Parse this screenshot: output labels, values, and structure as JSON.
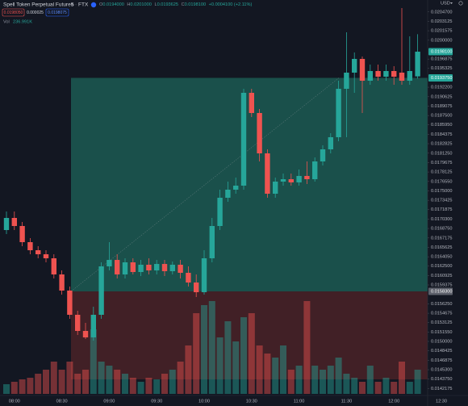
{
  "header": {
    "symbol": "Spell Token Perpetual Futures",
    "interval": "5",
    "exchange": "FTX",
    "ohlc": [
      {
        "key": "O",
        "value": "0.0194000"
      },
      {
        "key": "H",
        "value": "0.0201000"
      },
      {
        "key": "L",
        "value": "0.0193625"
      },
      {
        "key": "C",
        "value": "0.0198100"
      }
    ],
    "change": "+0.0004100 (+2.11%)",
    "sell_price": "0.0198050",
    "spread": "0.000025",
    "buy_price": "0.0198075",
    "volume_title": "Vol",
    "volume_value": "236.991K",
    "currency": "USD"
  },
  "chart_data": {
    "type": "candlestick",
    "categories": [
      null,
      "08:00",
      null,
      null,
      null,
      null,
      null,
      "08:30",
      null,
      null,
      null,
      null,
      null,
      "09:00",
      null,
      null,
      null,
      null,
      null,
      "09:30",
      null,
      null,
      null,
      null,
      null,
      "10:00",
      null,
      null,
      null,
      null,
      null,
      "10:30",
      null,
      null,
      null,
      null,
      null,
      "11:00",
      null,
      null,
      null,
      null,
      null,
      "11:30",
      null,
      null,
      null,
      null,
      null,
      "12:00",
      null,
      null,
      null,
      null,
      null,
      "12:30"
    ],
    "open": [
      0.016849,
      0.01705,
      0.016916,
      0.016648,
      0.016514,
      0.016447,
      0.01638,
      0.016112,
      0.015844,
      0.015442,
      0.015174,
      0.015067,
      0.015442,
      0.016246,
      0.016353,
      0.016112,
      0.016313,
      0.016152,
      0.016273,
      0.016179,
      0.016286,
      0.016166,
      0.016273,
      0.016139,
      0.015978,
      0.015817,
      0.01638,
      0.016916,
      0.017385,
      0.017519,
      0.017586,
      0.019127,
      0.018792,
      0.018122,
      0.017452,
      0.017653,
      0.017693,
      0.01764,
      0.017747,
      0.017693,
      0.017988,
      0.018189,
      0.01839,
      0.019194,
      0.019462,
      0.01969,
      0.019328,
      0.019489,
      0.019395,
      0.019489,
      0.019462,
      0.019328,
      0.0194,
      null,
      null,
      null
    ],
    "high": [
      0.017157,
      0.017157,
      0.016983,
      0.016715,
      0.016581,
      0.016514,
      0.016447,
      0.016179,
      0.015911,
      0.015509,
      0.015308,
      0.015576,
      0.016313,
      0.016648,
      0.016447,
      0.01638,
      0.01638,
      0.016353,
      0.01638,
      0.016353,
      0.016353,
      0.016326,
      0.016353,
      0.016246,
      0.016112,
      0.016514,
      0.01705,
      0.017519,
      0.017653,
      0.01772,
      0.019194,
      0.019194,
      0.018859,
      0.018189,
      0.01772,
      0.017787,
      0.017787,
      0.017854,
      0.017988,
      0.018055,
      0.018256,
      0.018457,
      0.019328,
      0.020132,
      0.019797,
      0.01973,
      0.019596,
      0.019596,
      0.019596,
      0.019569,
      0.020534,
      0.020065,
      0.0201,
      null,
      null,
      null
    ],
    "low": [
      0.016782,
      0.016849,
      0.016581,
      0.016447,
      0.01638,
      0.016313,
      0.016045,
      0.015777,
      0.015375,
      0.015107,
      0.01504,
      0.015013,
      0.015375,
      0.016179,
      0.016045,
      0.016045,
      0.016112,
      0.016085,
      0.016112,
      0.016112,
      0.016085,
      0.016112,
      0.016045,
      0.015911,
      0.015737,
      0.015777,
      0.016313,
      0.016849,
      0.017318,
      0.017452,
      0.017519,
      0.018725,
      0.017988,
      0.017385,
      0.017385,
      0.017586,
      0.017586,
      0.017586,
      0.017613,
      0.017653,
      0.017921,
      0.018122,
      0.018323,
      0.01839,
      0.019127,
      0.018792,
      0.019261,
      0.019328,
      0.019328,
      0.019261,
      0.019261,
      0.019261,
      0.0193625,
      null,
      null,
      null
    ],
    "close": [
      0.01705,
      0.016916,
      0.016648,
      0.016514,
      0.016447,
      0.01638,
      0.016112,
      0.015844,
      0.015442,
      0.015174,
      0.015067,
      0.015442,
      0.016246,
      0.016353,
      0.016112,
      0.016313,
      0.016152,
      0.016273,
      0.016179,
      0.016286,
      0.016166,
      0.016273,
      0.016139,
      0.015978,
      0.015817,
      0.01638,
      0.016916,
      0.017385,
      0.017519,
      0.017586,
      0.019127,
      0.018792,
      0.018122,
      0.017452,
      0.017653,
      0.017693,
      0.01764,
      0.017747,
      0.017693,
      0.017988,
      0.018189,
      0.01839,
      0.019194,
      0.019462,
      0.01969,
      0.019328,
      0.019489,
      0.019395,
      0.019489,
      0.019395,
      0.019328,
      0.019489,
      0.01981,
      null,
      null,
      null
    ],
    "volume": [
      94800,
      118500,
      142200,
      158000,
      197500,
      237000,
      316000,
      237000,
      316000,
      197500,
      237000,
      632000,
      316000,
      276500,
      237000,
      197500,
      158000,
      118500,
      158000,
      142200,
      197500,
      237000,
      316000,
      474000,
      790000,
      869000,
      908500,
      553000,
      711000,
      513500,
      750500,
      790000,
      474000,
      395000,
      355500,
      474000,
      237000,
      276500,
      908500,
      276500,
      237000,
      276500,
      355500,
      197500,
      158000,
      118500,
      276500,
      118500,
      158000,
      118500,
      316000,
      118500,
      236991,
      null,
      null,
      null
    ],
    "up_color": "#26a69a",
    "down_color": "#ef5350",
    "ylim": [
      0.014102,
      0.020668
    ],
    "yticks": [
      {
        "value": 0.02047,
        "label": "0.0204700"
      },
      {
        "value": 0.0203125,
        "label": "0.0203125"
      },
      {
        "value": 0.0201575,
        "label": "0.0201575"
      },
      {
        "value": 0.02,
        "label": "0.0200000"
      },
      {
        "value": 0.0196875,
        "label": "0.0196875"
      },
      {
        "value": 0.0195325,
        "label": "0.0195325"
      },
      {
        "value": 0.01922,
        "label": "0.0192200"
      },
      {
        "value": 0.0190625,
        "label": "0.0190625"
      },
      {
        "value": 0.0189075,
        "label": "0.0189075"
      },
      {
        "value": 0.01875,
        "label": "0.0187500"
      },
      {
        "value": 0.018595,
        "label": "0.0185950"
      },
      {
        "value": 0.0184375,
        "label": "0.0184375"
      },
      {
        "value": 0.0182825,
        "label": "0.0182825"
      },
      {
        "value": 0.018125,
        "label": "0.0181250"
      },
      {
        "value": 0.0179675,
        "label": "0.0179675"
      },
      {
        "value": 0.0178125,
        "label": "0.0178125"
      },
      {
        "value": 0.017655,
        "label": "0.0176550"
      },
      {
        "value": 0.0175,
        "label": "0.0175000"
      },
      {
        "value": 0.0173425,
        "label": "0.0173425"
      },
      {
        "value": 0.0171875,
        "label": "0.0171875"
      },
      {
        "value": 0.01703,
        "label": "0.0170300"
      },
      {
        "value": 0.016875,
        "label": "0.0168750"
      },
      {
        "value": 0.0167175,
        "label": "0.0167175"
      },
      {
        "value": 0.0165625,
        "label": "0.0165625"
      },
      {
        "value": 0.016405,
        "label": "0.0164050"
      },
      {
        "value": 0.01625,
        "label": "0.0162500"
      },
      {
        "value": 0.0160925,
        "label": "0.0160925"
      },
      {
        "value": 0.0159375,
        "label": "0.0159375"
      },
      {
        "value": 0.015625,
        "label": "0.0156250"
      },
      {
        "value": 0.0154675,
        "label": "0.0154675"
      },
      {
        "value": 0.0153125,
        "label": "0.0153125"
      },
      {
        "value": 0.015155,
        "label": "0.0151550"
      },
      {
        "value": 0.015,
        "label": "0.0150000"
      },
      {
        "value": 0.0148425,
        "label": "0.0148425"
      },
      {
        "value": 0.0146875,
        "label": "0.0146875"
      },
      {
        "value": 0.01453,
        "label": "0.0145300"
      },
      {
        "value": 0.014375,
        "label": "0.0143750"
      },
      {
        "value": 0.0142175,
        "label": "0.0142175"
      }
    ],
    "price_labels": [
      {
        "value": 0.01981,
        "label": "0.0198100",
        "color": "#26a69a"
      },
      {
        "value": 0.019375,
        "label": "0.0193750",
        "color": "#26a69a"
      },
      {
        "value": 0.01583,
        "label": "0.0158300",
        "color": "#5d606b"
      }
    ],
    "position": {
      "target": 0.019375,
      "entry": 0.01583,
      "stop": 0.01437,
      "profit_color": "#1c5a52",
      "loss_color": "#4a2227"
    }
  }
}
